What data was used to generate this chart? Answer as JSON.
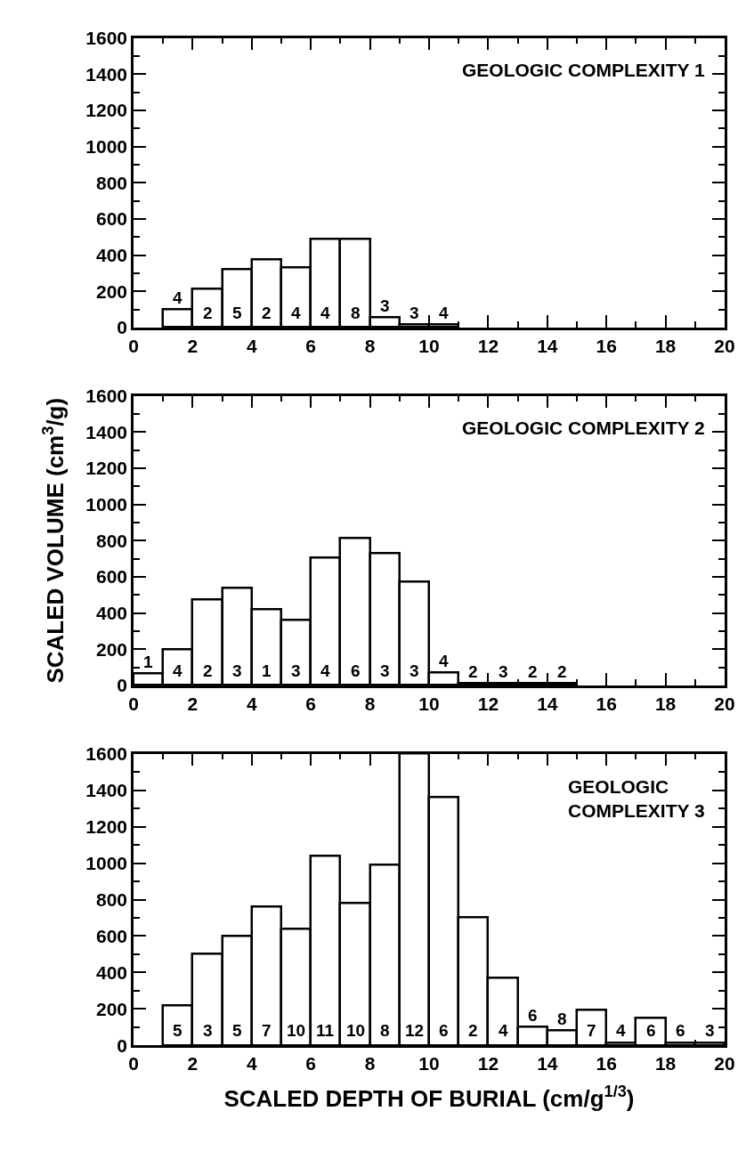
{
  "chart_data": [
    {
      "type": "histogram",
      "bins": [
        1,
        2,
        3,
        4,
        5,
        6,
        7,
        8,
        9,
        10,
        11
      ],
      "values": [
        100,
        215,
        320,
        375,
        330,
        490,
        490,
        55,
        15,
        15
      ],
      "color": "#ffffff",
      "xlim": [
        0,
        20
      ],
      "xticks": [
        0,
        2,
        4,
        6,
        8,
        10,
        12,
        14,
        16,
        18,
        20
      ],
      "ylim": [
        0,
        1600
      ],
      "yticks": [
        0,
        200,
        400,
        600,
        800,
        1000,
        1200,
        1400,
        1600
      ],
      "annotations": [
        "GEOLOGIC COMPLEXITY 1",
        "4",
        "2",
        "5",
        "2",
        "4",
        "4",
        "8",
        "3",
        "3",
        "4"
      ]
    },
    {
      "type": "histogram",
      "bins": [
        0,
        1,
        2,
        3,
        4,
        5,
        6,
        7,
        8,
        9,
        10,
        11,
        12,
        13,
        14,
        15
      ],
      "values": [
        65,
        200,
        475,
        540,
        420,
        360,
        705,
        815,
        730,
        570,
        70,
        10,
        10,
        10,
        10
      ],
      "color": "#ffffff",
      "xlim": [
        0,
        20
      ],
      "xticks": [
        0,
        2,
        4,
        6,
        8,
        10,
        12,
        14,
        16,
        18,
        20
      ],
      "ylim": [
        0,
        1600
      ],
      "yticks": [
        0,
        200,
        400,
        600,
        800,
        1000,
        1200,
        1400,
        1600
      ],
      "ylabel": "SCALED VOLUME (cm$^{3}$/g)",
      "annotations": [
        "GEOLOGIC COMPLEXITY 2",
        "1",
        "4",
        "2",
        "3",
        "1",
        "3",
        "4",
        "6",
        "3",
        "3",
        "4",
        "2",
        "3",
        "2",
        "2"
      ]
    },
    {
      "type": "histogram",
      "bins": [
        1,
        2,
        3,
        4,
        5,
        6,
        7,
        8,
        9,
        10,
        11,
        12,
        13,
        14,
        15,
        16,
        17,
        18,
        19,
        20
      ],
      "values": [
        220,
        500,
        600,
        760,
        640,
        1040,
        780,
        990,
        1600,
        1360,
        700,
        370,
        100,
        80,
        195,
        15,
        150,
        15,
        15
      ],
      "color": "#ffffff",
      "xlim": [
        0,
        20
      ],
      "xticks": [
        0,
        2,
        4,
        6,
        8,
        10,
        12,
        14,
        16,
        18,
        20
      ],
      "ylim": [
        0,
        1600
      ],
      "yticks": [
        0,
        200,
        400,
        600,
        800,
        1000,
        1200,
        1400,
        1600
      ],
      "xlabel": "SCALED DEPTH OF BURIAL (cm/g$^{1/3}$)",
      "annotations": [
        "GEOLOGIC\nCOMPLEXITY 3",
        "5",
        "3",
        "5",
        "7",
        "10",
        "11",
        "10",
        "8",
        "12",
        "6",
        "2",
        "4",
        "6",
        "8",
        "7",
        "4",
        "6",
        "6",
        "3"
      ]
    }
  ]
}
